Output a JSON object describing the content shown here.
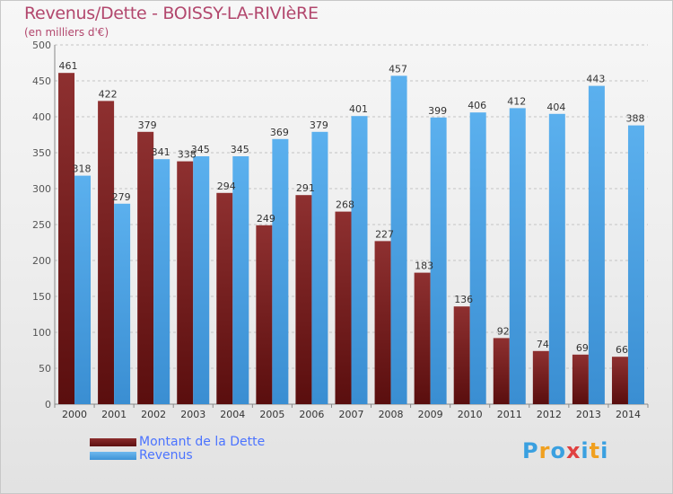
{
  "header": {
    "title": "Revenus/Dette - BOISSY-LA-RIVIèRE",
    "subtitle": "(en milliers d'€)"
  },
  "chart_data": {
    "type": "bar",
    "title": "Revenus/Dette - BOISSY-LA-RIVIèRE",
    "subtitle": "(en milliers d'€)",
    "categories": [
      "2000",
      "2001",
      "2002",
      "2003",
      "2004",
      "2005",
      "2006",
      "2007",
      "2008",
      "2009",
      "2010",
      "2011",
      "2012",
      "2013",
      "2014"
    ],
    "series": [
      {
        "name": "Montant de la Dette",
        "color": "#7a1e1e",
        "values": [
          461,
          422,
          379,
          338,
          294,
          249,
          291,
          268,
          227,
          183,
          136,
          92,
          74,
          69,
          66
        ]
      },
      {
        "name": "Revenus",
        "color": "#4ba3e3",
        "values": [
          318,
          279,
          341,
          345,
          345,
          369,
          379,
          401,
          457,
          399,
          406,
          412,
          404,
          443,
          388
        ]
      }
    ],
    "ylim": [
      0,
      500
    ],
    "yticks": [
      0,
      50,
      100,
      150,
      200,
      250,
      300,
      350,
      400,
      450,
      500
    ],
    "grid": true,
    "legend_position": "bottom-left"
  },
  "legend": {
    "debt_label": "Montant de la Dette",
    "revenue_label": "Revenus"
  },
  "logo": {
    "text": "Proxiti",
    "colors": [
      "#3aa0e0",
      "#f0a020",
      "#3aa0e0",
      "#e04040",
      "#3aa0e0",
      "#f0a020",
      "#3aa0e0"
    ]
  }
}
